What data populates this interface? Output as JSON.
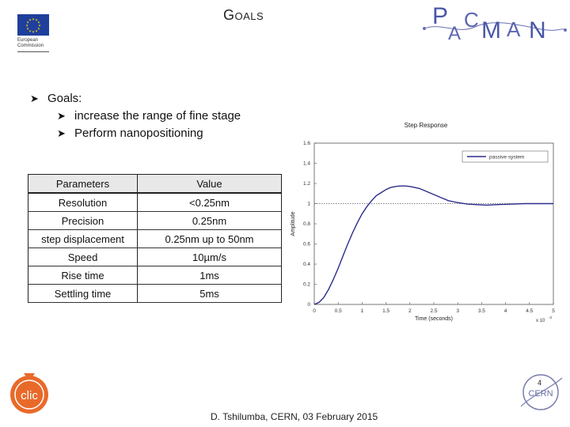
{
  "header": {
    "eu_logo_text_line1": "European",
    "eu_logo_text_line2": "Commission",
    "title_initial": "G",
    "title_rest": "OALS",
    "pacman_logo": "PACMAN"
  },
  "bullets": {
    "main": "Goals:",
    "sub": [
      "increase the range of fine stage",
      "Perform nanopositioning"
    ],
    "marker_icon": "arrow-bullet-icon"
  },
  "table": {
    "headers": [
      "Parameters",
      "Value"
    ],
    "rows": [
      [
        "Resolution",
        "<0.25nm"
      ],
      [
        "Precision",
        "0.25nm"
      ],
      [
        "step displacement",
        "0.25nm up to 50nm"
      ],
      [
        "Speed",
        "10µm/s"
      ],
      [
        "Rise time",
        "1ms"
      ],
      [
        "Settling time",
        "5ms"
      ]
    ]
  },
  "chart_data": {
    "type": "line",
    "title": "Step Response",
    "xlabel": "Time (seconds)",
    "ylabel": "Amplitude",
    "x_exponent_label": "x 10",
    "x_exponent_power": "-3",
    "xlim": [
      0,
      5
    ],
    "ylim": [
      0,
      1.6
    ],
    "xticks": [
      "0",
      "0.5",
      "1",
      "1.5",
      "2",
      "2.5",
      "3",
      "3.5",
      "4",
      "4.5",
      "5"
    ],
    "yticks": [
      "0",
      "0.2",
      "0.4",
      "0.6",
      "0.8",
      "1",
      "1.2",
      "1.4",
      "1.6"
    ],
    "legend": "top-right",
    "grid": false,
    "reference_line": 1.0,
    "series": [
      {
        "name": "passive system",
        "color": "#2b2b8c",
        "x": [
          0,
          0.1,
          0.2,
          0.3,
          0.4,
          0.5,
          0.6,
          0.7,
          0.8,
          0.9,
          1.0,
          1.1,
          1.2,
          1.3,
          1.4,
          1.5,
          1.6,
          1.7,
          1.8,
          1.9,
          2.0,
          2.1,
          2.2,
          2.3,
          2.4,
          2.5,
          2.6,
          2.7,
          2.8,
          2.9,
          3.0,
          3.2,
          3.4,
          3.6,
          3.8,
          4.0,
          4.2,
          4.4,
          4.6,
          4.8,
          5.0
        ],
        "y": [
          0,
          0.02,
          0.07,
          0.15,
          0.25,
          0.36,
          0.48,
          0.6,
          0.71,
          0.81,
          0.9,
          0.97,
          1.03,
          1.08,
          1.11,
          1.14,
          1.16,
          1.17,
          1.175,
          1.175,
          1.17,
          1.16,
          1.15,
          1.13,
          1.11,
          1.09,
          1.07,
          1.05,
          1.03,
          1.02,
          1.01,
          0.995,
          0.99,
          0.985,
          0.99,
          0.993,
          0.997,
          1.0,
          1.0,
          1.0,
          1.0
        ]
      }
    ]
  },
  "footer": {
    "text": "D. Tshilumba, CERN,  03 February 2015",
    "page": "4",
    "clic_logo": "CLIC",
    "cern_logo": "CERN"
  }
}
